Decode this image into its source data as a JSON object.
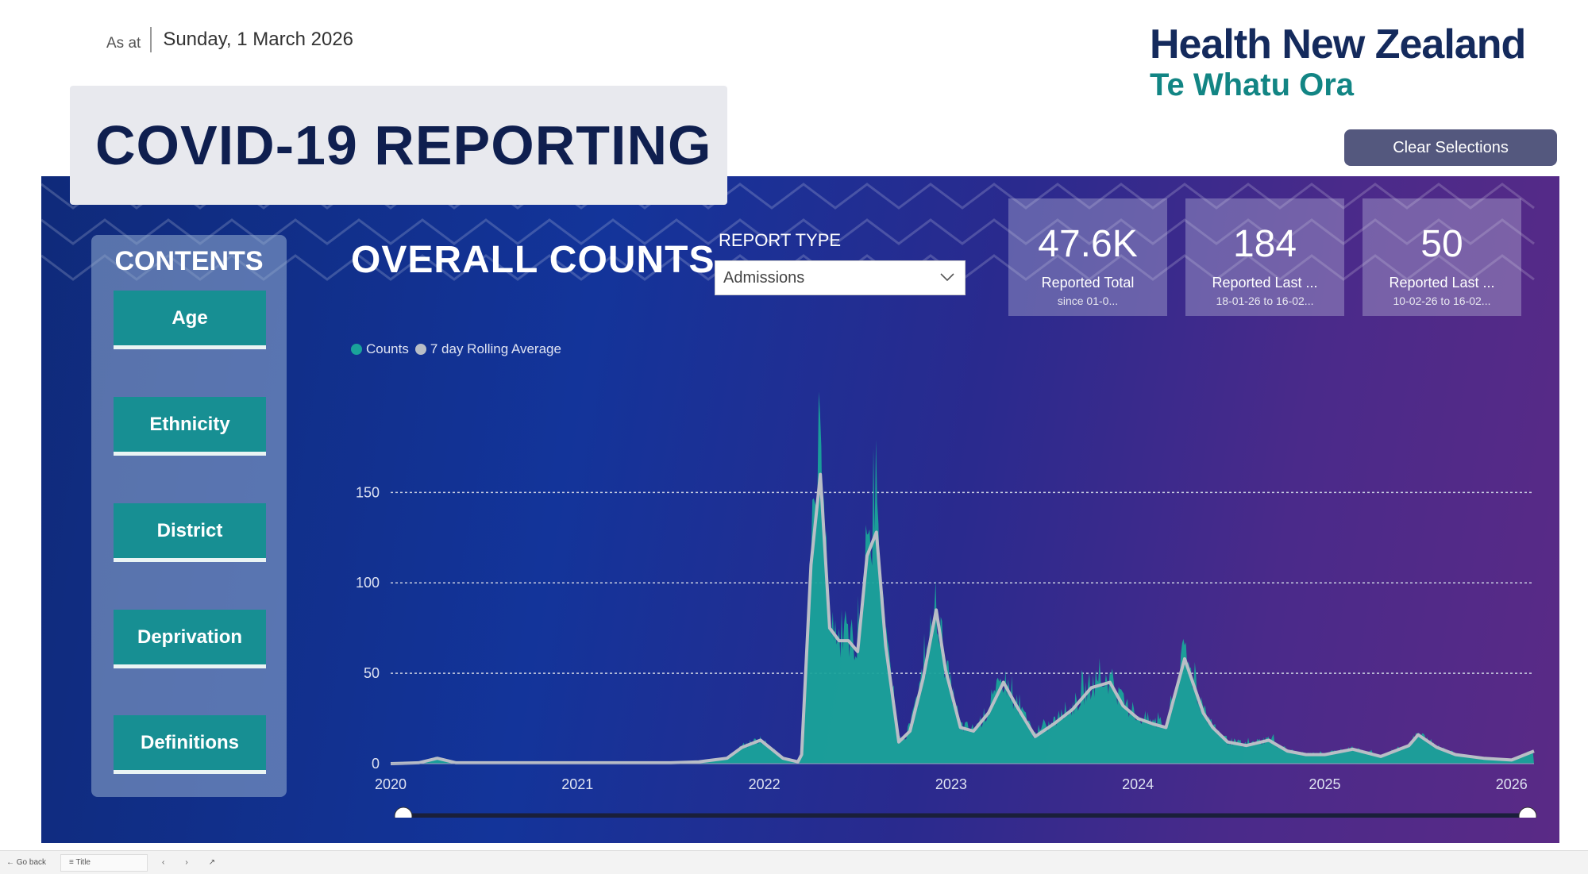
{
  "header": {
    "as_at_label": "As at",
    "date": "Sunday, 1 March 2026",
    "logo_line1": "Health New Zealand",
    "logo_line2": "Te Whatu Ora",
    "clear_label": "Clear Selections"
  },
  "title": "COVID-19 REPORTING",
  "contents": {
    "heading": "CONTENTS",
    "items": [
      {
        "label": "Age"
      },
      {
        "label": "Ethnicity"
      },
      {
        "label": "District"
      },
      {
        "label": "Deprivation"
      },
      {
        "label": "Definitions"
      }
    ]
  },
  "overall_counts_title": "OVERALL COUNTS",
  "report_type": {
    "label": "REPORT TYPE",
    "selected": "Admissions"
  },
  "cards": [
    {
      "value": "47.6K",
      "label": "Reported Total",
      "sub": "since 01-0..."
    },
    {
      "value": "184",
      "label": "Reported Last ...",
      "sub": "18-01-26 to 16-02..."
    },
    {
      "value": "50",
      "label": "Reported Last ...",
      "sub": "10-02-26 to 16-02..."
    }
  ],
  "colors": {
    "counts": "#1aa39a",
    "rolling": "#b9bec6",
    "clear_button": "#54587e",
    "nav_button": "#178f93",
    "logo_dark": "#142a5c",
    "logo_teal": "#128584"
  },
  "chart_data": {
    "type": "area",
    "legend": [
      "Counts",
      "7 day Rolling Average"
    ],
    "legend_position": "top-left",
    "y_ticks": [
      0,
      50,
      100,
      150
    ],
    "ylim": [
      0,
      180
    ],
    "x_ticks": [
      "2020",
      "2021",
      "2022",
      "2023",
      "2024",
      "2025",
      "2026"
    ],
    "xlim": [
      2020.0,
      2026.12
    ],
    "grid": true,
    "series": [
      {
        "name": "7 day Rolling Average",
        "x": [
          2020.0,
          2020.15,
          2020.25,
          2020.35,
          2020.6,
          2021.0,
          2021.5,
          2021.65,
          2021.8,
          2021.88,
          2021.98,
          2022.1,
          2022.18,
          2022.2,
          2022.25,
          2022.3,
          2022.35,
          2022.4,
          2022.45,
          2022.5,
          2022.55,
          2022.6,
          2022.65,
          2022.72,
          2022.78,
          2022.85,
          2022.92,
          2022.97,
          2023.05,
          2023.12,
          2023.2,
          2023.28,
          2023.35,
          2023.45,
          2023.55,
          2023.65,
          2023.75,
          2023.85,
          2023.92,
          2024.0,
          2024.08,
          2024.15,
          2024.25,
          2024.35,
          2024.4,
          2024.48,
          2024.58,
          2024.7,
          2024.8,
          2024.9,
          2025.0,
          2025.15,
          2025.3,
          2025.45,
          2025.5,
          2025.6,
          2025.7,
          2025.85,
          2026.0,
          2026.12
        ],
        "values": [
          0,
          0.5,
          3,
          0.5,
          0.5,
          0.5,
          0.5,
          1,
          3,
          9,
          13,
          3,
          1,
          5,
          110,
          160,
          75,
          68,
          68,
          62,
          115,
          128,
          65,
          12,
          18,
          47,
          85,
          52,
          20,
          18,
          28,
          45,
          32,
          15,
          22,
          30,
          42,
          45,
          32,
          25,
          22,
          20,
          58,
          28,
          20,
          12,
          10,
          13,
          7,
          5,
          5,
          8,
          4,
          10,
          16,
          9,
          5,
          3,
          2,
          7
        ]
      },
      {
        "name": "Counts",
        "values": []
      }
    ]
  }
}
